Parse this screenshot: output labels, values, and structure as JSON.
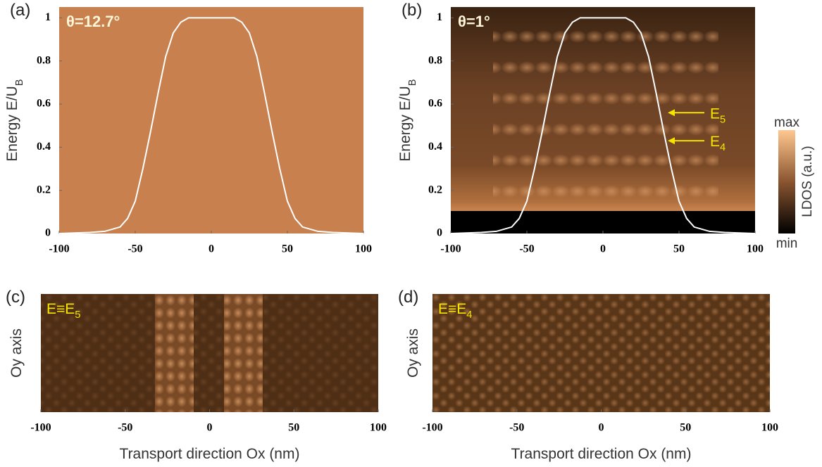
{
  "chart_data": [
    {
      "type": "line",
      "panel_label": "(a)",
      "title": "θ=12.7°",
      "y_label": "Energy E/U",
      "y_label_sub": "B",
      "x": [
        -100,
        -80,
        -70,
        -60,
        -55,
        -50,
        -45,
        -40,
        -35,
        -30,
        -25,
        -20,
        -15,
        0,
        15,
        20,
        25,
        30,
        35,
        40,
        45,
        50,
        55,
        60,
        70,
        80,
        100
      ],
      "values": [
        0,
        0.005,
        0.01,
        0.03,
        0.07,
        0.15,
        0.3,
        0.47,
        0.65,
        0.82,
        0.93,
        0.98,
        1,
        1,
        1,
        0.98,
        0.93,
        0.82,
        0.65,
        0.47,
        0.3,
        0.15,
        0.07,
        0.03,
        0.01,
        0.005,
        0
      ],
      "color": "#ffffff",
      "xlim": [
        -100,
        100
      ],
      "ylim": [
        0,
        1.05
      ],
      "xticks": [
        -100,
        -50,
        0,
        50,
        100
      ],
      "yticks": [
        0,
        0.2,
        0.4,
        0.6,
        0.8,
        1
      ]
    },
    {
      "type": "line",
      "panel_label": "(b)",
      "title": "θ=1°",
      "y_label": "Energy E/U",
      "y_label_sub": "B",
      "x": [
        -100,
        -80,
        -70,
        -60,
        -55,
        -50,
        -45,
        -40,
        -35,
        -30,
        -25,
        -20,
        -15,
        0,
        15,
        20,
        25,
        30,
        35,
        40,
        45,
        50,
        55,
        60,
        70,
        80,
        100
      ],
      "values": [
        0,
        0.005,
        0.01,
        0.03,
        0.07,
        0.15,
        0.3,
        0.47,
        0.65,
        0.82,
        0.93,
        0.98,
        1,
        1,
        1,
        0.98,
        0.93,
        0.82,
        0.65,
        0.47,
        0.3,
        0.15,
        0.07,
        0.03,
        0.01,
        0.005,
        0
      ],
      "color": "#ffffff",
      "xlim": [
        -100,
        100
      ],
      "ylim": [
        0,
        1.05
      ],
      "xticks": [
        -100,
        -50,
        0,
        50,
        100
      ],
      "yticks": [
        0,
        0.2,
        0.4,
        0.6,
        0.8,
        1
      ],
      "annotations": [
        {
          "text": "E",
          "sub": "5",
          "y": 0.56
        },
        {
          "text": "E",
          "sub": "4",
          "y": 0.43
        }
      ],
      "colorbar": {
        "label": "LDOS (a.u.)",
        "max_label": "max",
        "min_label": "min"
      }
    },
    {
      "type": "heatmap",
      "panel_label": "(c)",
      "title": "E≡E",
      "title_sub": "5",
      "x_label": "Transport direction Ox (nm)",
      "y_label": "Oy axis",
      "xlim": [
        -100,
        100
      ],
      "xticks": [
        -100,
        -50,
        0,
        50,
        100
      ]
    },
    {
      "type": "heatmap",
      "panel_label": "(d)",
      "title": "E≡E",
      "title_sub": "4",
      "x_label": "Transport direction Ox (nm)",
      "y_label": "Oy axis",
      "xlim": [
        -100,
        100
      ],
      "xticks": [
        -100,
        -50,
        0,
        50,
        100
      ]
    }
  ]
}
